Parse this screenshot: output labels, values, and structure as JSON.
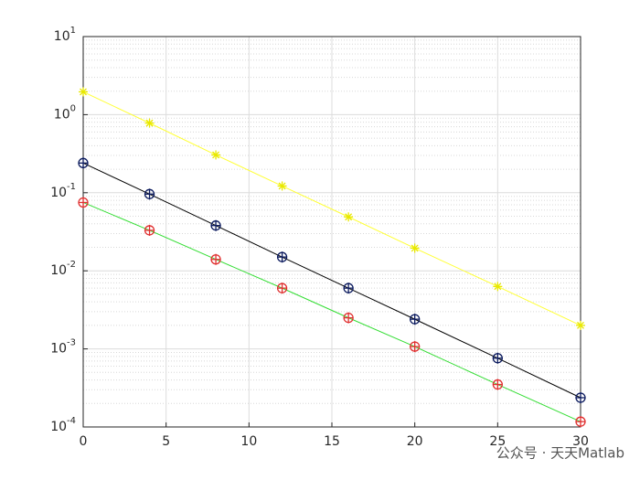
{
  "chart_data": {
    "type": "line",
    "log_y": true,
    "grid": true,
    "minor_grid": true,
    "x": [
      0,
      4,
      8,
      12,
      16,
      20,
      25,
      30
    ],
    "series": [
      {
        "color": "#ffff33",
        "marker": "*",
        "marker_color": "#e8e800",
        "values": [
          1.96,
          0.78,
          0.305,
          0.122,
          0.049,
          0.0195,
          0.0063,
          0.002
        ]
      },
      {
        "color": "#000000",
        "marker": "o",
        "marker_color": "#0b1a5e",
        "values": [
          0.24,
          0.096,
          0.038,
          0.015,
          0.006,
          0.0024,
          0.00076,
          0.000237
        ]
      },
      {
        "color": "#33dd33",
        "marker": "o",
        "marker_color": "#e03030",
        "values": [
          0.075,
          0.033,
          0.014,
          0.006,
          0.0025,
          0.00107,
          0.00035,
          0.000117
        ]
      }
    ],
    "xlim": [
      0,
      30
    ],
    "xticks": [
      0,
      5,
      10,
      15,
      20,
      25,
      30
    ],
    "ylim": [
      0.0001,
      10
    ],
    "yticks": [
      {
        "value": 0.0001,
        "label": "10",
        "exponent": "-4"
      },
      {
        "value": 0.001,
        "label": "10",
        "exponent": "-3"
      },
      {
        "value": 0.01,
        "label": "10",
        "exponent": "-2"
      },
      {
        "value": 0.1,
        "label": "10",
        "exponent": "-1"
      },
      {
        "value": 1,
        "label": "10",
        "exponent": "0"
      },
      {
        "value": 10,
        "label": "10",
        "exponent": "1"
      }
    ],
    "watermark": "公众号 · 天天Matlab"
  }
}
